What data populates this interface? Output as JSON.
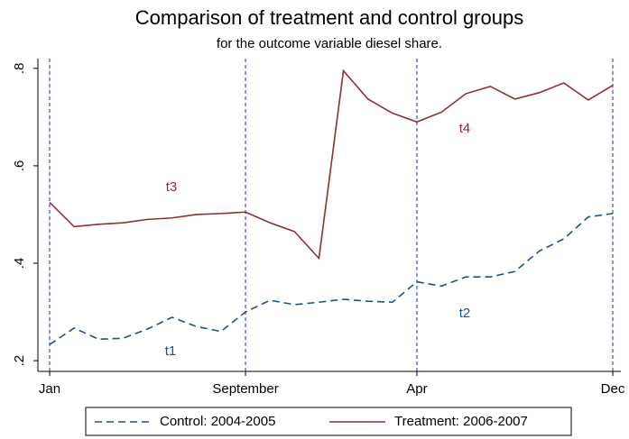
{
  "chart_data": {
    "type": "line",
    "title": "Comparison of treatment and control groups",
    "subtitle": "for the outcome variable diesel share.",
    "categories": [
      "Jan",
      null,
      null,
      null,
      null,
      null,
      null,
      null,
      "September",
      null,
      null,
      null,
      null,
      null,
      null,
      "Apr",
      null,
      null,
      null,
      null,
      null,
      null,
      null,
      "Dec"
    ],
    "series": [
      {
        "name": "Control: 2004-2005",
        "color": "#23507d",
        "dash": true,
        "values": [
          0.233,
          0.267,
          0.244,
          0.246,
          0.265,
          0.289,
          0.27,
          0.26,
          0.3,
          0.324,
          0.315,
          0.32,
          0.326,
          0.322,
          0.32,
          0.362,
          0.353,
          0.372,
          0.372,
          0.383,
          0.425,
          0.45,
          0.495,
          0.502
        ]
      },
      {
        "name": "Treatment: 2006-2007",
        "color": "#8e2f33",
        "dash": false,
        "values": [
          0.525,
          0.475,
          0.48,
          0.483,
          0.49,
          0.493,
          0.5,
          0.502,
          0.505,
          0.483,
          0.465,
          0.41,
          0.795,
          0.737,
          0.708,
          0.69,
          0.71,
          0.748,
          0.763,
          0.737,
          0.75,
          0.77,
          0.735,
          0.765
        ]
      }
    ],
    "ylim": [
      0.178,
      0.82
    ],
    "yticks": [
      {
        "value": 0.2,
        "label": ".2"
      },
      {
        "value": 0.4,
        "label": ".4"
      },
      {
        "value": 0.6,
        "label": ".6"
      },
      {
        "value": 0.8,
        "label": ".8"
      }
    ],
    "annotations": [
      "t1",
      "t2",
      "t3",
      "t4"
    ]
  }
}
